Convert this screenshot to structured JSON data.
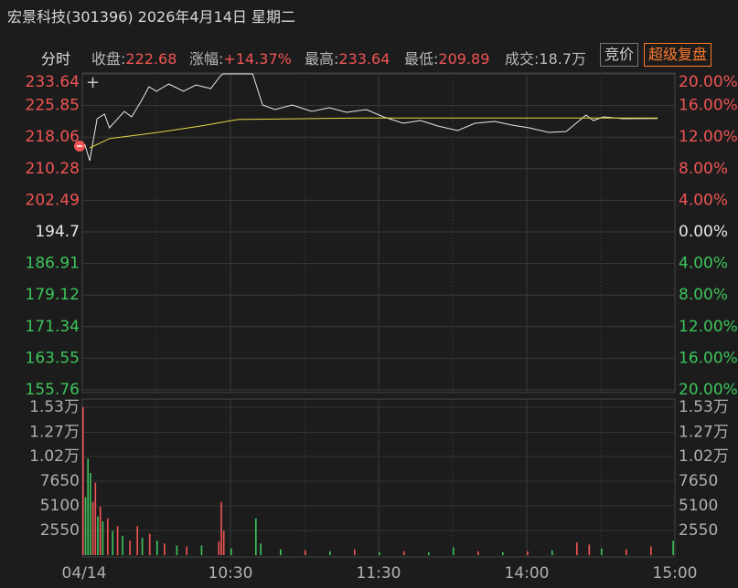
{
  "header": {
    "title": "宏景科技(301396) 2026年4月14日 星期二",
    "tab": "分时",
    "stats": [
      {
        "label": "收盘:",
        "value": "222.68",
        "color": "#f05454"
      },
      {
        "label": "涨幅:",
        "value": "+14.37%",
        "color": "#f05454"
      },
      {
        "label": "最高:",
        "value": "233.64",
        "color": "#f05454"
      },
      {
        "label": "最低:",
        "value": "209.89",
        "color": "#f05454"
      },
      {
        "label": "成交:",
        "value": "18.7万",
        "color": "#bbbbbb"
      }
    ],
    "buttons": [
      "竞价",
      "超级复盘"
    ]
  },
  "chart_data": [
    {
      "type": "line",
      "xlim": [
        0,
        240
      ],
      "ylim": [
        155.76,
        233.64
      ],
      "yticks": [
        233.64,
        225.85,
        218.06,
        210.28,
        202.49,
        194.7,
        186.91,
        179.12,
        171.34,
        163.55,
        155.76
      ],
      "y2lim": [
        -20,
        20
      ],
      "y2ticks": [
        {
          "value": 20,
          "label": "20.00%"
        },
        {
          "value": 16,
          "label": "16.00%"
        },
        {
          "value": 12,
          "label": "12.00%"
        },
        {
          "value": 8,
          "label": "8.00%"
        },
        {
          "value": 4,
          "label": "4.00%"
        },
        {
          "value": 0,
          "label": "0.00%"
        },
        {
          "value": -4,
          "label": "4.00%"
        },
        {
          "value": -8,
          "label": "8.00%"
        },
        {
          "value": -12,
          "label": "12.00%"
        },
        {
          "value": -16,
          "label": "16.00%"
        },
        {
          "value": -20,
          "label": "20.00%"
        }
      ],
      "up_color": "#f05454",
      "down_color": "#3dc45a",
      "flat_color": "#e6e6e6",
      "grid": true,
      "series": [
        {
          "color": "#e8e8e8",
          "x": [
            1,
            3,
            6,
            9,
            11,
            17,
            20,
            24,
            27,
            30,
            35,
            41,
            46,
            52,
            56,
            57,
            69,
            73,
            78,
            85,
            93,
            100,
            107,
            115,
            122,
            130,
            137,
            144,
            152,
            159,
            167,
            174,
            181,
            189,
            196,
            200,
            204,
            207,
            211,
            219,
            233
          ],
          "values": [
            216.31,
            212.26,
            222.61,
            223.74,
            220.36,
            224.41,
            223.06,
            227.11,
            230.49,
            229.36,
            231.16,
            229.36,
            230.94,
            230.04,
            233.19,
            233.64,
            233.64,
            225.99,
            224.86,
            225.99,
            224.41,
            225.31,
            224.19,
            224.86,
            223.06,
            221.49,
            222.16,
            220.81,
            219.69,
            221.49,
            221.94,
            221.04,
            220.36,
            219.24,
            219.46,
            221.49,
            223.51,
            222.16,
            223.06,
            222.61,
            222.68
          ]
        },
        {
          "color": "#e8d84a",
          "x": [
            3,
            11,
            30,
            48,
            63,
            115,
            233
          ],
          "values": [
            215.4,
            217.7,
            219.2,
            220.8,
            222.4,
            222.8,
            222.8
          ]
        }
      ]
    },
    {
      "type": "bar",
      "xlim": [
        0,
        240
      ],
      "ylim": [
        0,
        15300
      ],
      "yticks": [
        {
          "value": 15300,
          "label": "1.53万"
        },
        {
          "value": 12700,
          "label": "1.27万"
        },
        {
          "value": 10200,
          "label": "1.02万"
        },
        7650,
        5100,
        2550
      ],
      "xticks": [
        {
          "value": 0,
          "label": "04/14"
        },
        {
          "value": 60,
          "label": "10:30"
        },
        {
          "value": 120,
          "label": "11:30"
        },
        {
          "value": 180,
          "label": "14:00"
        },
        {
          "value": 240,
          "label": "15:00"
        }
      ],
      "x_minor_ticks": [
        30,
        90,
        150,
        210
      ],
      "x": [
        0,
        1,
        2,
        3,
        4,
        5,
        6,
        7,
        8,
        10,
        12,
        14,
        16,
        19,
        22,
        24,
        27,
        30,
        33,
        38,
        42,
        48,
        55,
        56,
        57,
        60,
        70,
        72,
        80,
        90,
        100,
        110,
        120,
        130,
        140,
        150,
        160,
        170,
        180,
        190,
        200,
        205,
        210,
        220,
        230,
        239
      ],
      "values": [
        15300,
        6000,
        10000,
        8500,
        5500,
        7500,
        4000,
        5000,
        3500,
        3800,
        2500,
        3000,
        2000,
        1500,
        3000,
        1800,
        2200,
        1500,
        1200,
        1000,
        900,
        1000,
        1400,
        5500,
        2500,
        700,
        3800,
        1200,
        600,
        500,
        400,
        600,
        300,
        400,
        300,
        800,
        400,
        300,
        400,
        500,
        1300,
        1100,
        700,
        600,
        900,
        1500
      ],
      "colors": [
        "#f05454",
        "#3dc45a",
        "#3dc45a",
        "#3dc45a",
        "#f05454",
        "#f05454",
        "#3dc45a",
        "#f05454",
        "#3dc45a",
        "#f05454",
        "#3dc45a",
        "#f05454",
        "#3dc45a",
        "#f05454",
        "#f05454",
        "#3dc45a",
        "#f05454",
        "#3dc45a",
        "#f05454",
        "#3dc45a",
        "#f05454",
        "#3dc45a",
        "#f05454",
        "#f05454",
        "#f05454",
        "#3dc45a",
        "#3dc45a",
        "#3dc45a",
        "#3dc45a",
        "#f05454",
        "#3dc45a",
        "#f05454",
        "#3dc45a",
        "#f05454",
        "#3dc45a",
        "#3dc45a",
        "#f05454",
        "#3dc45a",
        "#f05454",
        "#3dc45a",
        "#f05454",
        "#f05454",
        "#3dc45a",
        "#f05454",
        "#f05454",
        "#3dc45a"
      ],
      "label_color": "#b0b0b0"
    }
  ]
}
